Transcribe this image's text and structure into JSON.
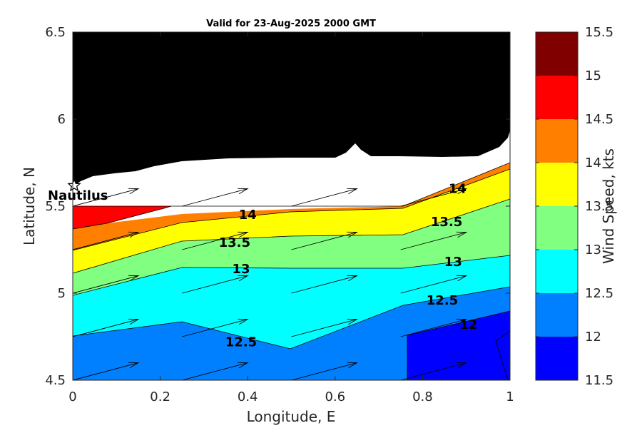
{
  "chart_data": {
    "type": "contour",
    "title": "Valid for 23-Aug-2025 2000 GMT",
    "xlabel": "Longitude, E",
    "ylabel": "Latitude, N",
    "xlim": [
      0,
      1
    ],
    "ylim": [
      4.5,
      6.5
    ],
    "x_ticks": [
      "0",
      "0.2",
      "0.4",
      "0.6",
      "0.8",
      "1"
    ],
    "y_ticks": [
      "4.5",
      "5",
      "5.5",
      "6",
      "6.5"
    ],
    "colorbar": {
      "label": "Wind Speed, kts",
      "range": [
        11.5,
        15.5
      ],
      "ticks": [
        "11.5",
        "12",
        "12.5",
        "13",
        "13.5",
        "14",
        "14.5",
        "15",
        "15.5"
      ],
      "levels": [
        11.5,
        12,
        12.5,
        13,
        13.5,
        14,
        14.5,
        15,
        15.5
      ],
      "colors": [
        "#0000ff",
        "#0080ff",
        "#00ffff",
        "#80ff80",
        "#ffff00",
        "#ff8000",
        "#ff0000",
        "#800000"
      ]
    },
    "land_color": "#000000",
    "coast_color": "#ffffff",
    "grid": false,
    "contour_labels": [
      {
        "text": "14",
        "lon": 0.4,
        "lat": 5.45
      },
      {
        "text": "13.5",
        "lon": 0.37,
        "lat": 5.29
      },
      {
        "text": "13",
        "lon": 0.385,
        "lat": 5.14
      },
      {
        "text": "12.5",
        "lon": 0.385,
        "lat": 4.72
      },
      {
        "text": "14",
        "lon": 0.88,
        "lat": 5.6
      },
      {
        "text": "13.5",
        "lon": 0.855,
        "lat": 5.41
      },
      {
        "text": "13",
        "lon": 0.87,
        "lat": 5.18
      },
      {
        "text": "12.5",
        "lon": 0.845,
        "lat": 4.96
      },
      {
        "text": "12",
        "lon": 0.905,
        "lat": 4.82
      }
    ],
    "site": {
      "name": "Nautilus",
      "lon": 0.005,
      "lat": 5.63
    },
    "wind_vectors": {
      "lons": [
        0,
        0.25,
        0.5,
        0.75
      ],
      "lats": [
        4.5,
        4.75,
        5.0,
        5.25,
        5.5
      ],
      "u": 0.15,
      "v": 0.1
    }
  }
}
